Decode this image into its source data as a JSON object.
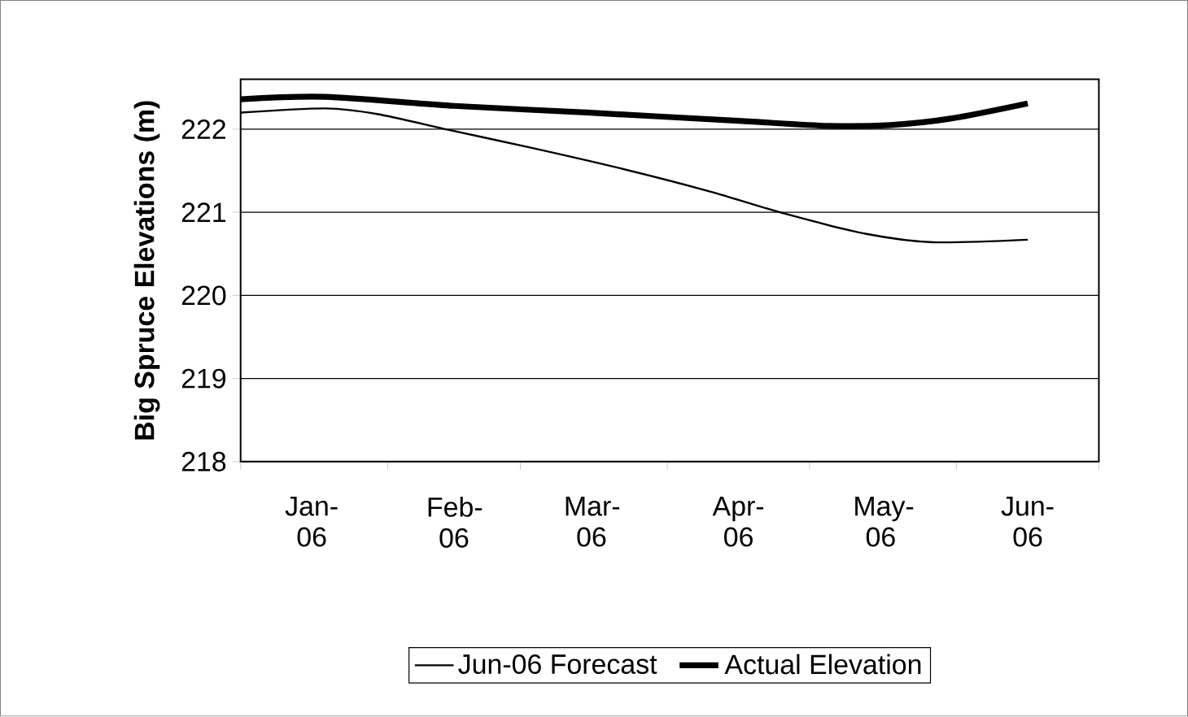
{
  "chart_data": {
    "type": "line",
    "ylabel": "Big Spruce Elevations (m)",
    "ylim": [
      218,
      222.6
    ],
    "yticks": [
      218,
      219,
      220,
      221,
      222
    ],
    "grid": "y",
    "legend": "bottom",
    "marker": "none",
    "line_style": "solid",
    "xlim": [
      "2006-01-01",
      "2006-07-01"
    ],
    "xticks": [
      {
        "value": "2006-01-01",
        "label": null
      },
      {
        "value": "2006-02-01",
        "label": null
      },
      {
        "value": "2006-03-01",
        "label": null
      },
      {
        "value": "2006-04-01",
        "label": null
      },
      {
        "value": "2006-05-01",
        "label": null
      },
      {
        "value": "2006-06-01",
        "label": null
      },
      {
        "value": "2006-07-01",
        "label": null
      },
      {
        "value": "2006-01-16",
        "label": "Jan-06"
      },
      {
        "value": "2006-02-15",
        "label": "Feb-06"
      },
      {
        "value": "2006-03-16",
        "label": "Mar-06"
      },
      {
        "value": "2006-04-16",
        "label": "Apr-06"
      },
      {
        "value": "2006-05-16",
        "label": "May-06"
      },
      {
        "value": "2006-06-16",
        "label": "Jun-06"
      }
    ],
    "series": [
      {
        "name": "Jun-06 Forecast",
        "color": "#000000",
        "x": [
          "2006-01-01",
          "2006-01-19",
          "2006-01-30",
          "2006-02-14",
          "2006-03-03",
          "2006-03-22",
          "2006-04-10",
          "2006-04-26",
          "2006-05-13",
          "2006-05-27",
          "2006-06-16"
        ],
        "values": [
          222.2,
          222.25,
          222.18,
          221.99,
          221.78,
          221.53,
          221.25,
          220.98,
          220.74,
          220.64,
          220.67
        ]
      },
      {
        "name": "Actual Elevation",
        "color": "#000000",
        "x": [
          "2006-01-01",
          "2006-01-19",
          "2006-02-15",
          "2006-03-15",
          "2006-04-16",
          "2006-05-05",
          "2006-05-18",
          "2006-05-31",
          "2006-06-16"
        ],
        "values": [
          222.36,
          222.39,
          222.28,
          222.2,
          222.1,
          222.04,
          222.05,
          222.13,
          222.31
        ]
      }
    ]
  }
}
